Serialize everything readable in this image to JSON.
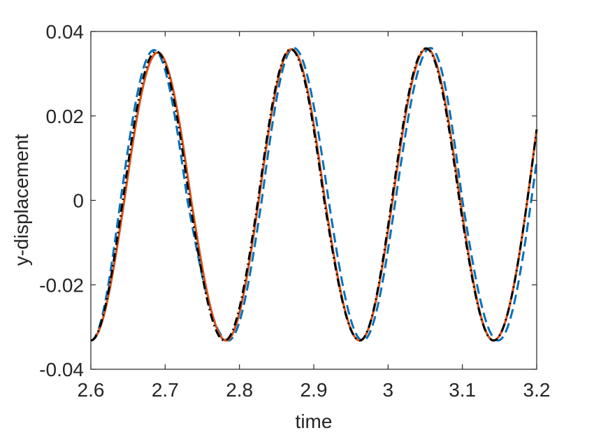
{
  "chart_data": {
    "type": "line",
    "xlabel": "time",
    "ylabel": "y-displacement",
    "xlim": [
      2.6,
      3.2
    ],
    "ylim": [
      -0.04,
      0.04
    ],
    "x_ticks": [
      2.6,
      2.7,
      2.8,
      2.9,
      3.0,
      3.1,
      3.2
    ],
    "x_tick_labels": [
      "2.6",
      "2.7",
      "2.8",
      "2.9",
      "3",
      "3.1",
      "3.2"
    ],
    "y_ticks": [
      0.04,
      0.02,
      0,
      -0.02,
      -0.04
    ],
    "y_tick_labels": [
      "0.04",
      "0.02",
      "0",
      "-0.02",
      "-0.04"
    ],
    "grid": false,
    "legend": "none",
    "series": [
      {
        "style": "dashed",
        "color": "#0072BD",
        "x": [
          2.6,
          2.64,
          2.685,
          2.73,
          2.785,
          2.83,
          2.873,
          2.92,
          2.966,
          3.01,
          3.057,
          3.1,
          3.148,
          3.2
        ],
        "y": [
          -0.0332,
          0.0,
          0.0356,
          0.0,
          -0.0332,
          0.0,
          0.0361,
          0.0,
          -0.0332,
          0.0,
          0.0361,
          0.0,
          -0.0332,
          0.0093
        ]
      },
      {
        "style": "solid",
        "color": "#D95319",
        "x": [
          2.6,
          2.645,
          2.69,
          2.735,
          2.782,
          2.826,
          2.87,
          2.915,
          2.962,
          3.006,
          3.052,
          3.097,
          3.142,
          3.2
        ],
        "y": [
          -0.0332,
          0.0,
          0.035,
          0.0,
          -0.0332,
          0.0,
          0.0358,
          0.0,
          -0.0332,
          0.0,
          0.036,
          0.0,
          -0.0332,
          0.0168
        ]
      },
      {
        "style": "dash-dot",
        "color": "#000000",
        "x": [
          2.6,
          2.643,
          2.688,
          2.733,
          2.78,
          2.825,
          2.869,
          2.914,
          2.962,
          3.005,
          3.051,
          3.096,
          3.142,
          3.2
        ],
        "y": [
          -0.0332,
          0.0,
          0.0353,
          0.0,
          -0.0332,
          0.0,
          0.0358,
          0.0,
          -0.0332,
          0.0,
          0.036,
          0.0,
          -0.0332,
          0.0168
        ]
      }
    ]
  }
}
